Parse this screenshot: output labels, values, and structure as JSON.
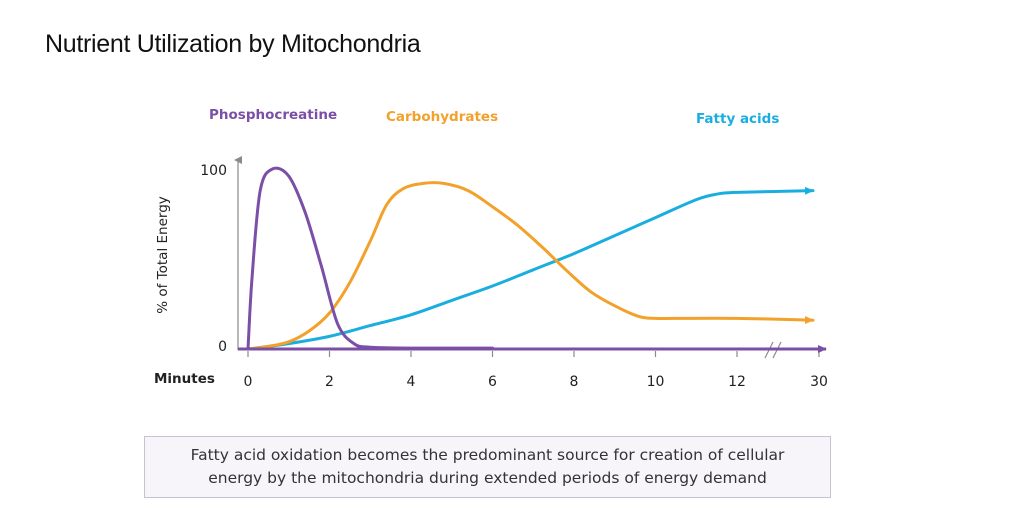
{
  "title": "Nutrient Utilization by Mitochondria",
  "caption": {
    "line1": "Fatty acid oxidation becomes the predominant source for creation of cellular",
    "line2": "energy by the mitochondria during extended periods of energy demand"
  },
  "colors": {
    "phosphocreatine": "#7b4fa6",
    "carbohydrates": "#f2a12b",
    "fatty_acids": "#1aaee0",
    "axis": "#6b5a8e"
  },
  "chart_data": {
    "type": "line",
    "title": "Nutrient Utilization by Mitochondria",
    "xlabel": "Minutes",
    "ylabel": "% of Total Energy",
    "x_ticks": [
      0,
      2,
      4,
      6,
      8,
      10,
      12,
      30
    ],
    "y_ticks": [
      0,
      100
    ],
    "xlim": [
      0,
      30
    ],
    "ylim": [
      0,
      100
    ],
    "axis_break": "between 12 and 30",
    "grid": false,
    "series": [
      {
        "name": "Phosphocreatine",
        "color": "#7b4fa6",
        "x": [
          0,
          0.1,
          0.3,
          0.6,
          1.0,
          1.4,
          1.8,
          2.2,
          2.6,
          3.0,
          4,
          6,
          8,
          10,
          12,
          30
        ],
        "y": [
          0,
          40,
          88,
          100,
          96,
          76,
          46,
          14,
          3,
          1,
          0.5,
          0.5,
          0.5,
          0.5,
          0.5,
          0
        ]
      },
      {
        "name": "Carbohydrates",
        "color": "#f2a12b",
        "x": [
          0,
          0.5,
          1,
          1.5,
          2,
          2.5,
          3,
          3.4,
          3.8,
          4.3,
          4.8,
          5.4,
          6,
          6.6,
          7.2,
          7.8,
          8.4,
          9,
          9.6,
          10,
          10.5,
          12,
          30
        ],
        "y": [
          0,
          1.5,
          4,
          10,
          20,
          37,
          60,
          80,
          89,
          92,
          92,
          88,
          79,
          69,
          57,
          44,
          32,
          24,
          18,
          17,
          17,
          17,
          16
        ]
      },
      {
        "name": "Fatty acids",
        "color": "#1aaee0",
        "x": [
          0,
          1,
          2,
          3,
          4,
          5,
          6,
          7,
          8,
          9,
          10,
          11,
          11.5,
          12,
          30
        ],
        "y": [
          0,
          3,
          7,
          13,
          19,
          27,
          35,
          44,
          53,
          63,
          73,
          83,
          86,
          87,
          88
        ]
      }
    ]
  }
}
